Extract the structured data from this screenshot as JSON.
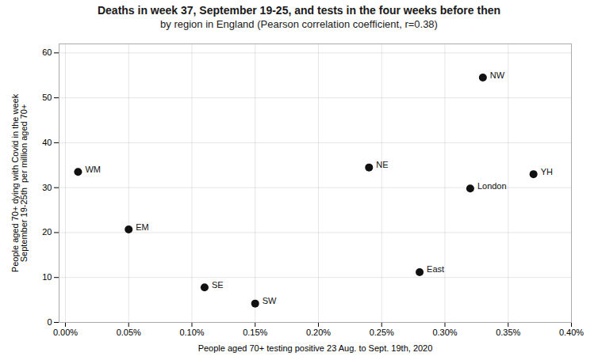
{
  "chart_data": {
    "type": "scatter",
    "title": "Deaths in week 37, September 19-25, and tests in the four weeks before then",
    "subtitle": "by region in England (Pearson correlation coefficient, r=0.38)",
    "xlabel": "People aged 70+ testing positive 23 Aug. to Sept. 19th, 2020",
    "ylabel": "People aged 70+ dying with Covid in the week\nSeptember 19-25th  per million aged 70+",
    "labels": [
      "WM",
      "EM",
      "SE",
      "SW",
      "NE",
      "East",
      "London",
      "NW",
      "YH"
    ],
    "x": [
      0.0001,
      0.0005,
      0.0011,
      0.0015,
      0.0024,
      0.0028,
      0.0032,
      0.0033,
      0.0037
    ],
    "values": [
      33.5,
      20.7,
      7.8,
      4.2,
      34.5,
      11.2,
      29.8,
      54.5,
      33.0
    ],
    "color": "#111111",
    "xlim": [
      -5e-05,
      0.004
    ],
    "xticks": [
      {
        "value": 0,
        "label": "0.00%"
      },
      {
        "value": 0.0005,
        "label": "0.05%"
      },
      {
        "value": 0.001,
        "label": "0.10%"
      },
      {
        "value": 0.0015,
        "label": "0.15%"
      },
      {
        "value": 0.002,
        "label": "0.20%"
      },
      {
        "value": 0.0025,
        "label": "0.25%"
      },
      {
        "value": 0.003,
        "label": "0.30%"
      },
      {
        "value": 0.0035,
        "label": "0.35%"
      },
      {
        "value": 0.004,
        "label": "0.40%"
      }
    ],
    "ylim": [
      0,
      62
    ],
    "yticks": [
      0,
      10,
      20,
      30,
      40,
      50,
      60
    ],
    "grid": true
  }
}
